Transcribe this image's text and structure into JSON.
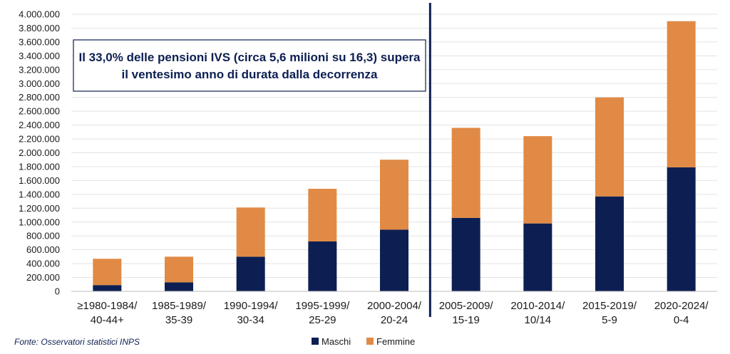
{
  "chart_data": {
    "type": "bar",
    "stacked": true,
    "categories": [
      [
        "≥1980-1984/",
        "40-44+"
      ],
      [
        "1985-1989/",
        "35-39"
      ],
      [
        "1990-1994/",
        "30-34"
      ],
      [
        "1995-1999/",
        "25-29"
      ],
      [
        "2000-2004/",
        "20-24"
      ],
      [
        "2005-2009/",
        "15-19"
      ],
      [
        "2010-2014/",
        "10/14"
      ],
      [
        "2015-2019/",
        "5-9"
      ],
      [
        "2020-2024/",
        "0-4"
      ]
    ],
    "series": [
      {
        "name": "Maschi",
        "color": "#0d1f52",
        "values": [
          90000,
          130000,
          500000,
          720000,
          890000,
          1060000,
          980000,
          1370000,
          1790000
        ]
      },
      {
        "name": "Femmine",
        "color": "#e08a45",
        "values": [
          380000,
          370000,
          710000,
          760000,
          1010000,
          1300000,
          1260000,
          1430000,
          2110000
        ]
      }
    ],
    "ylim": [
      0,
      4000000
    ],
    "ytick_step": 200000,
    "yticks": [
      "0",
      "200.000",
      "400.000",
      "600.000",
      "800.000",
      "1.000.000",
      "1.200.000",
      "1.400.000",
      "1.600.000",
      "1.800.000",
      "2.000.000",
      "2.200.000",
      "2.400.000",
      "2.600.000",
      "2.800.000",
      "3.000.000",
      "3.200.000",
      "3.400.000",
      "3.600.000",
      "3.800.000",
      "4.000.000"
    ],
    "grid": true,
    "legend_position": "bottom-center",
    "divider_after_category": 5,
    "annotation": [
      "Il 33,0% delle pensioni IVS (circa 5,6 milioni su 16,3) supera",
      "il ventesimo anno di durata dalla decorrenza"
    ],
    "source": "Fonte: Osservatori statistici INPS"
  }
}
